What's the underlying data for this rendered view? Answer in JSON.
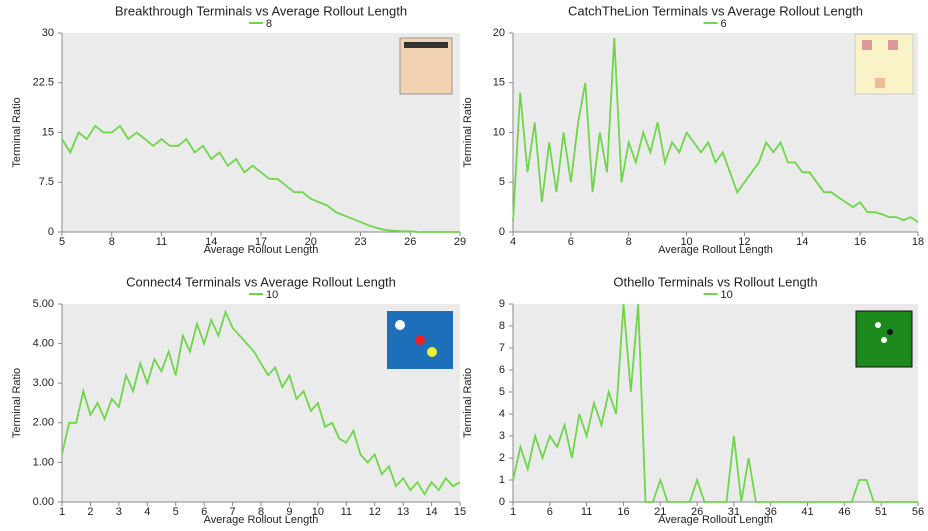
{
  "chart_data": [
    {
      "type": "line",
      "title": "Breakthrough Terminals vs Average Rollout Length",
      "x_label": "Average Rollout Length",
      "y_label": "Terminal Ratio",
      "x": [
        5,
        5.5,
        6,
        6.5,
        7,
        7.5,
        8,
        8.5,
        9,
        9.5,
        10,
        10.5,
        11,
        11.5,
        12,
        12.5,
        13,
        13.5,
        14,
        14.5,
        15,
        15.5,
        16,
        16.5,
        17,
        17.5,
        18,
        18.5,
        19,
        19.5,
        20,
        20.5,
        21,
        21.5,
        22,
        22.5,
        23,
        23.5,
        24,
        24.5,
        25,
        25.5,
        26,
        26.5,
        27,
        27.5,
        28,
        28.5,
        29
      ],
      "series": [
        {
          "name": "8",
          "color": "#6fd64a",
          "values": [
            14,
            12,
            15,
            14,
            16,
            15,
            15,
            16,
            14,
            15,
            14,
            13,
            14,
            13,
            13,
            14,
            12,
            13,
            11,
            12,
            10,
            11,
            9,
            10,
            9,
            8,
            8,
            7,
            6,
            6,
            5,
            4.5,
            4,
            3,
            2.5,
            2,
            1.5,
            1,
            0.6,
            0.3,
            0.2,
            0.1,
            0.1,
            0,
            0,
            0,
            0,
            0,
            0
          ]
        }
      ],
      "xlim": [
        5,
        29
      ],
      "xticks": [
        5,
        8,
        11,
        14,
        17,
        20,
        23,
        26,
        29
      ],
      "ylim": [
        0,
        30
      ],
      "yticks": [
        0,
        7.5,
        15,
        22.5,
        30
      ],
      "legend": "top"
    },
    {
      "type": "line",
      "title": "CatchTheLion Terminals vs Average Rollout Length",
      "x_label": "Average Rollout Length",
      "y_label": "Terminal Ratio",
      "x": [
        4,
        4.25,
        4.5,
        4.75,
        5,
        5.25,
        5.5,
        5.75,
        6,
        6.25,
        6.5,
        6.75,
        7,
        7.25,
        7.5,
        7.75,
        8,
        8.25,
        8.5,
        8.75,
        9,
        9.25,
        9.5,
        9.75,
        10,
        10.25,
        10.5,
        10.75,
        11,
        11.25,
        11.5,
        11.75,
        12,
        12.25,
        12.5,
        12.75,
        13,
        13.25,
        13.5,
        13.75,
        14,
        14.25,
        14.5,
        14.75,
        15,
        15.25,
        15.5,
        15.75,
        16,
        16.25,
        16.5,
        16.75,
        17,
        17.25,
        17.5,
        17.75,
        18
      ],
      "series": [
        {
          "name": "6",
          "color": "#6fd64a",
          "values": [
            1,
            14,
            6,
            11,
            3,
            9,
            4,
            10,
            5,
            11,
            15,
            4,
            10,
            6,
            19.5,
            5,
            9,
            7,
            10,
            8,
            11,
            7,
            9,
            8,
            10,
            9,
            8,
            9,
            7,
            8,
            6,
            4,
            5,
            6,
            7,
            9,
            8,
            9,
            7,
            7,
            6,
            6,
            5,
            4,
            4,
            3.5,
            3,
            2.5,
            3,
            2,
            2,
            1.8,
            1.5,
            1.5,
            1.2,
            1.5,
            1
          ]
        }
      ],
      "xlim": [
        4,
        18
      ],
      "xticks": [
        4,
        6,
        8,
        10,
        12,
        14,
        16,
        18
      ],
      "ylim": [
        0,
        20
      ],
      "yticks": [
        0,
        5,
        10,
        15,
        20
      ],
      "legend": "top"
    },
    {
      "type": "line",
      "title": "Connect4 Terminals vs Average Rollout Length",
      "x_label": "Average Rollout Length",
      "y_label": "Terminal Ratio",
      "x": [
        1,
        1.25,
        1.5,
        1.75,
        2,
        2.25,
        2.5,
        2.75,
        3,
        3.25,
        3.5,
        3.75,
        4,
        4.25,
        4.5,
        4.75,
        5,
        5.25,
        5.5,
        5.75,
        6,
        6.25,
        6.5,
        6.75,
        7,
        7.25,
        7.5,
        7.75,
        8,
        8.25,
        8.5,
        8.75,
        9,
        9.25,
        9.5,
        9.75,
        10,
        10.25,
        10.5,
        10.75,
        11,
        11.25,
        11.5,
        11.75,
        12,
        12.25,
        12.5,
        12.75,
        13,
        13.25,
        13.5,
        13.75,
        14,
        14.25,
        14.5,
        14.75,
        15
      ],
      "series": [
        {
          "name": "10",
          "color": "#6fd64a",
          "values": [
            1.2,
            2,
            2,
            2.8,
            2.2,
            2.5,
            2.1,
            2.6,
            2.4,
            3.2,
            2.8,
            3.5,
            3,
            3.6,
            3.3,
            3.8,
            3.2,
            4.2,
            3.8,
            4.5,
            4,
            4.6,
            4.2,
            4.8,
            4.4,
            4.2,
            4,
            3.8,
            3.5,
            3.2,
            3.4,
            2.9,
            3.2,
            2.6,
            2.8,
            2.3,
            2.5,
            1.9,
            2,
            1.6,
            1.5,
            1.8,
            1.2,
            1,
            1.2,
            0.7,
            0.9,
            0.4,
            0.6,
            0.3,
            0.5,
            0.2,
            0.5,
            0.3,
            0.6,
            0.4,
            0.5
          ]
        }
      ],
      "xlim": [
        1,
        15
      ],
      "xticks": [
        1,
        2,
        3,
        4,
        5,
        6,
        7,
        8,
        9,
        10,
        11,
        12,
        13,
        14,
        15
      ],
      "ylim": [
        0,
        5
      ],
      "yticks": [
        {
          "value": 0,
          "label": "0.00"
        },
        {
          "value": 1,
          "label": "1.00"
        },
        {
          "value": 2,
          "label": "2.00"
        },
        {
          "value": 3,
          "label": "3.00"
        },
        {
          "value": 4,
          "label": "4.00"
        },
        {
          "value": 5,
          "label": "5.00"
        }
      ],
      "legend": "top"
    },
    {
      "type": "line",
      "title": "Othello Terminals vs Rollout Length",
      "x_label": "Average Rollout Length",
      "y_label": "Terminal Ratio",
      "x": [
        1,
        2,
        3,
        4,
        5,
        6,
        7,
        8,
        9,
        10,
        11,
        12,
        13,
        14,
        15,
        16,
        17,
        18,
        19,
        20,
        21,
        22,
        23,
        24,
        25,
        26,
        27,
        28,
        29,
        30,
        31,
        32,
        33,
        34,
        35,
        36,
        37,
        38,
        39,
        40,
        41,
        42,
        43,
        44,
        45,
        46,
        47,
        48,
        49,
        50,
        51,
        52,
        53,
        54,
        55,
        56
      ],
      "series": [
        {
          "name": "10",
          "color": "#6fd64a",
          "values": [
            1,
            2.5,
            1.5,
            3,
            2,
            3,
            2.5,
            3.5,
            2,
            4,
            3,
            4.5,
            3.5,
            5,
            4,
            9,
            5,
            9,
            0,
            0,
            1,
            0,
            0,
            0,
            0,
            1,
            0,
            0,
            0,
            0,
            3,
            0,
            2,
            0,
            0,
            0,
            0,
            0,
            0,
            0,
            0,
            0,
            0,
            0,
            0,
            0,
            0,
            1,
            1,
            0,
            0,
            0,
            0,
            0,
            0,
            0
          ]
        }
      ],
      "xlim": [
        1,
        56
      ],
      "xticks": [
        1,
        6,
        11,
        16,
        21,
        26,
        31,
        36,
        41,
        46,
        51,
        56
      ],
      "ylim": [
        0,
        9
      ],
      "yticks": [
        0,
        1,
        2,
        3,
        4,
        5,
        6,
        7,
        8,
        9
      ],
      "legend": "top"
    }
  ]
}
